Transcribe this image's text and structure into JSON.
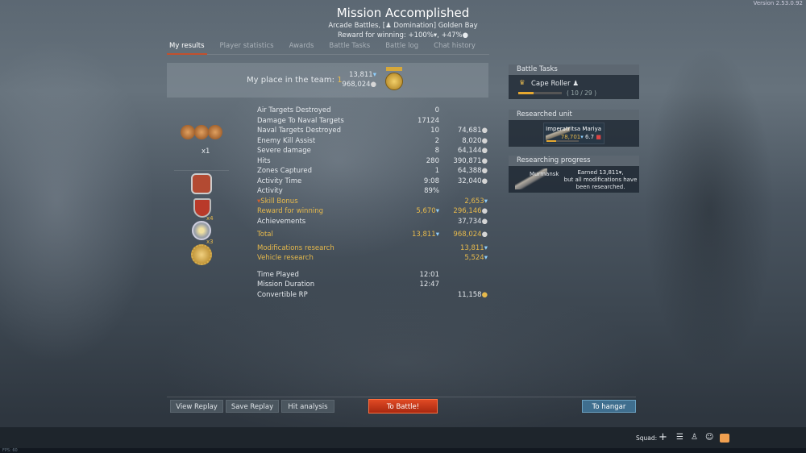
{
  "version": "Version 2.53.0.92",
  "header": {
    "title": "Mission Accomplished",
    "subtitle": "Arcade Battles, [♟ Domination] Golden Bay",
    "reward": "Reward for winning: +100%▾, +47%●"
  },
  "tabs": [
    {
      "label": "My results",
      "active": true
    },
    {
      "label": "Player statistics"
    },
    {
      "label": "Awards"
    },
    {
      "label": "Battle Tasks"
    },
    {
      "label": "Battle log"
    },
    {
      "label": "Chat history"
    }
  ],
  "place": {
    "label": "My place in the team: ",
    "value": "1",
    "rp": "13,811",
    "sl": "968,024"
  },
  "awards": {
    "first_count": "x1",
    "third_count": "x4",
    "fourth_count": "x3"
  },
  "stats": {
    "groups": [
      [
        {
          "l": "Air Targets Destroyed",
          "v1": "0",
          "v2": ""
        },
        {
          "l": "Damage To Naval Targets",
          "v1": "17124",
          "v2": ""
        },
        {
          "l": "Naval Targets Destroyed",
          "v1": "10",
          "v2": "74,681",
          "i2": "sl"
        },
        {
          "l": "Enemy Kill Assist",
          "v1": "2",
          "v2": "8,020",
          "i2": "sl"
        },
        {
          "l": "Severe damage",
          "v1": "8",
          "v2": "64,144",
          "i2": "sl"
        },
        {
          "l": "Hits",
          "v1": "280",
          "v2": "390,871",
          "i2": "sl"
        },
        {
          "l": "Zones Captured",
          "v1": "1",
          "v2": "64,388",
          "i2": "sl"
        },
        {
          "l": "Activity Time",
          "v1": "9:08",
          "v2": "32,040",
          "i2": "sl"
        },
        {
          "l": "Activity",
          "v1": "89%",
          "v2": ""
        },
        {
          "l": "Skill Bonus",
          "v1": "",
          "v2": "2,653",
          "i2": "rp",
          "gold": true,
          "skill": true
        },
        {
          "l": "Reward for winning",
          "v1": "5,670",
          "i1": "rp",
          "v2": "296,146",
          "i2": "sl",
          "gold": true
        },
        {
          "l": "Achievements",
          "v1": "",
          "v2": "37,734",
          "i2": "sl"
        }
      ],
      [
        {
          "l": "Total",
          "v1": "13,811",
          "i1": "rp",
          "v2": "968,024",
          "i2": "sl",
          "gold": true
        }
      ],
      [
        {
          "l": "Modifications research",
          "v1": "",
          "v2": "13,811",
          "i2": "rp",
          "gold": true
        },
        {
          "l": "Vehicle research",
          "v1": "",
          "v2": "5,524",
          "i2": "rp",
          "gold": true
        }
      ],
      [
        {
          "l": "Time Played",
          "v1": "12:01",
          "v2": ""
        },
        {
          "l": "Mission Duration",
          "v1": "12:47",
          "v2": ""
        },
        {
          "l": "Convertible RP",
          "v1": "",
          "v2": "11,158",
          "i2": "crp"
        }
      ]
    ]
  },
  "battle_tasks": {
    "header": "Battle Tasks",
    "task": "Cape Roller",
    "progress_text": "( 10 / 29 )",
    "progress": 0.345
  },
  "researched": {
    "header": "Researched unit",
    "name": "Imperatritsa Mariya",
    "rp": "78,701",
    "br": "6.7",
    "progress": 0.3
  },
  "researching": {
    "header": "Researching progress",
    "name": "Murmansk",
    "earned": "Earned 13,811▾,",
    "note": "but all modifications have been researched."
  },
  "buttons": {
    "view_replay": "View Replay",
    "save_replay": "Save Replay",
    "hit_analysis": "Hit analysis",
    "to_battle": "To Battle!",
    "to_hangar": "To hangar"
  },
  "bottom": {
    "squad": "Squad:",
    "fps": "FPS: 60"
  },
  "colors": {
    "accent_gold": "#e6b94c",
    "rp_blue": "#8fd0ff",
    "battle_red": "#d8391c",
    "hangar_blue": "#3f6e8e"
  }
}
